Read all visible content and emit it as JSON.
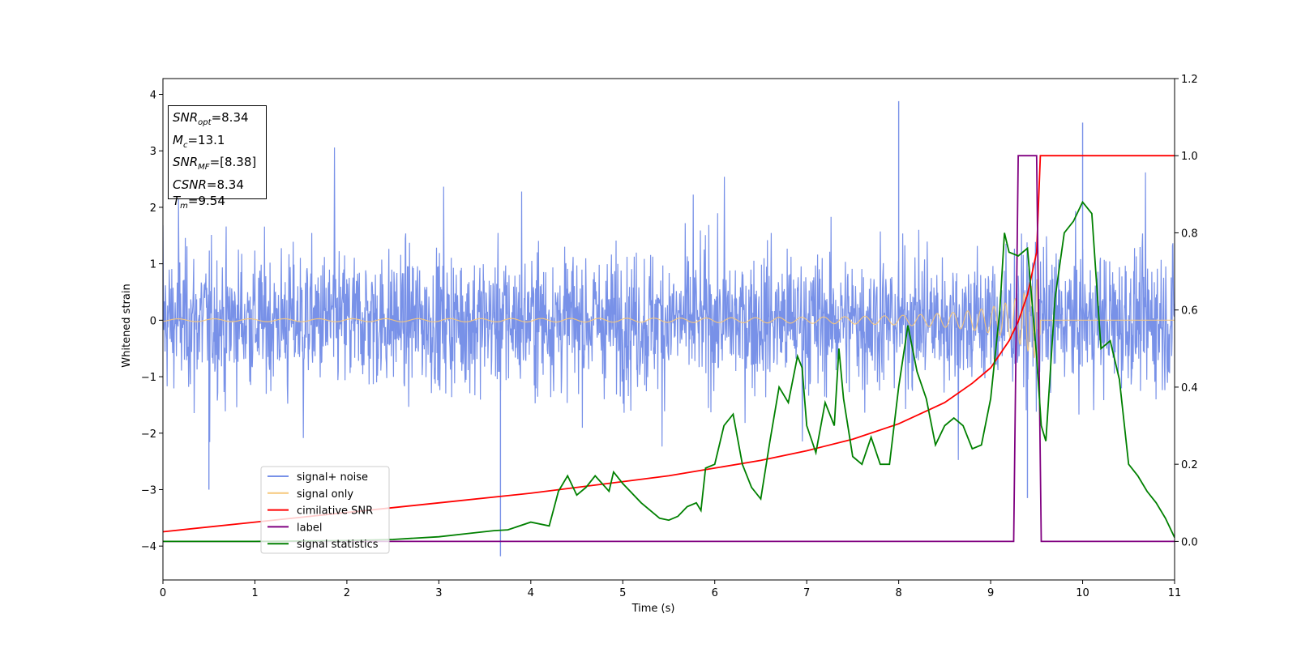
{
  "chart_data": {
    "type": "line",
    "xlabel": "Time (s)",
    "ylabel": "Whitened strain",
    "xlim": [
      0,
      11
    ],
    "ylim": [
      -4.6,
      4.28
    ],
    "y2lim": [
      -0.1,
      1.2
    ],
    "xticks": [
      "0",
      "1",
      "2",
      "3",
      "4",
      "5",
      "6",
      "7",
      "8",
      "9",
      "10",
      "11"
    ],
    "yticks": [
      "4",
      "3",
      "2",
      "1",
      "0",
      "−1",
      "−2",
      "−3",
      "−4"
    ],
    "y2ticks": [
      "1.2",
      "1.0",
      "0.8",
      "0.6",
      "0.4",
      "0.2",
      "0.0"
    ],
    "legend_position": "lower-left",
    "colors": {
      "noise": "#7891e8",
      "signal": "#f6c77a",
      "csnr": "#ff0000",
      "label": "#800080",
      "stats": "#008000"
    },
    "series": [
      {
        "name": "signal+ noise",
        "axis": "left",
        "noise_band": {
          "typical_low": -1.5,
          "typical_high": 1.5
        },
        "notable_peaks": [
          [
            3.67,
            -4.18
          ],
          [
            8.0,
            3.88
          ],
          [
            10.0,
            3.5
          ],
          [
            9.4,
            -3.15
          ],
          [
            0.5,
            -3.0
          ]
        ]
      },
      {
        "name": "signal only",
        "axis": "left",
        "chirp_start_amplitude": 0.02,
        "chirp_end_amplitude": 0.85,
        "merger_time": 9.54
      },
      {
        "name": "cimilative SNR",
        "axis": "right",
        "x": [
          0,
          1,
          2,
          3,
          4,
          5,
          5.5,
          6,
          6.5,
          7,
          7.5,
          8,
          8.5,
          8.8,
          9.0,
          9.2,
          9.3,
          9.4,
          9.5,
          9.54,
          11
        ],
        "y": [
          0.025,
          0.05,
          0.075,
          0.1,
          0.125,
          0.155,
          0.17,
          0.19,
          0.21,
          0.235,
          0.265,
          0.305,
          0.36,
          0.41,
          0.45,
          0.52,
          0.57,
          0.64,
          0.75,
          1.0,
          1.0
        ]
      },
      {
        "name": "label",
        "axis": "right",
        "x": [
          0,
          9.25,
          9.3,
          9.5,
          9.55,
          11
        ],
        "y": [
          0,
          0,
          1,
          1,
          0,
          0
        ]
      },
      {
        "name": "signal statistics",
        "axis": "right",
        "x": [
          0,
          1,
          2,
          2.5,
          3,
          3.3,
          3.6,
          3.75,
          4.0,
          4.2,
          4.3,
          4.4,
          4.5,
          4.6,
          4.7,
          4.85,
          4.9,
          5.0,
          5.2,
          5.4,
          5.5,
          5.6,
          5.7,
          5.8,
          5.85,
          5.9,
          6.0,
          6.1,
          6.2,
          6.3,
          6.4,
          6.5,
          6.6,
          6.7,
          6.8,
          6.9,
          6.95,
          7.0,
          7.1,
          7.2,
          7.3,
          7.35,
          7.4,
          7.5,
          7.6,
          7.7,
          7.8,
          7.9,
          8.0,
          8.1,
          8.2,
          8.3,
          8.4,
          8.5,
          8.6,
          8.7,
          8.8,
          8.9,
          9.0,
          9.1,
          9.15,
          9.2,
          9.3,
          9.4,
          9.5,
          9.55,
          9.6,
          9.7,
          9.8,
          9.9,
          10.0,
          10.1,
          10.2,
          10.3,
          10.4,
          10.5,
          10.6,
          10.7,
          10.8,
          10.9,
          11.0
        ],
        "y": [
          0.0,
          0.0,
          0.002,
          0.005,
          0.012,
          0.02,
          0.028,
          0.03,
          0.05,
          0.04,
          0.13,
          0.17,
          0.12,
          0.14,
          0.17,
          0.13,
          0.18,
          0.15,
          0.1,
          0.06,
          0.055,
          0.065,
          0.09,
          0.1,
          0.08,
          0.19,
          0.2,
          0.3,
          0.33,
          0.2,
          0.14,
          0.11,
          0.26,
          0.4,
          0.36,
          0.48,
          0.45,
          0.3,
          0.23,
          0.36,
          0.3,
          0.5,
          0.37,
          0.22,
          0.2,
          0.27,
          0.2,
          0.2,
          0.4,
          0.56,
          0.44,
          0.37,
          0.25,
          0.3,
          0.32,
          0.3,
          0.24,
          0.25,
          0.37,
          0.6,
          0.8,
          0.75,
          0.74,
          0.76,
          0.48,
          0.3,
          0.26,
          0.63,
          0.8,
          0.83,
          0.88,
          0.85,
          0.5,
          0.52,
          0.42,
          0.2,
          0.17,
          0.13,
          0.1,
          0.06,
          0.01
        ]
      }
    ]
  },
  "annotation": {
    "snr_opt": {
      "base": "SNR",
      "sub": "opt",
      "value": "=8.34"
    },
    "mc": {
      "base": "M",
      "sub": "c",
      "value": "=13.1"
    },
    "snr_mf": {
      "base": "SNR",
      "sub": "MF",
      "value": "=[8.38]"
    },
    "csnr": {
      "base": "CSNR",
      "value": "=8.34"
    },
    "tm": {
      "base": "T",
      "sub": "m",
      "value": "=9.54"
    }
  },
  "legend": [
    {
      "label": "signal+ noise",
      "color": "#7891e8"
    },
    {
      "label": "signal only",
      "color": "#f6c77a"
    },
    {
      "label": "cimilative SNR",
      "color": "#ff0000"
    },
    {
      "label": "label",
      "color": "#800080"
    },
    {
      "label": "signal statistics",
      "color": "#008000"
    }
  ]
}
